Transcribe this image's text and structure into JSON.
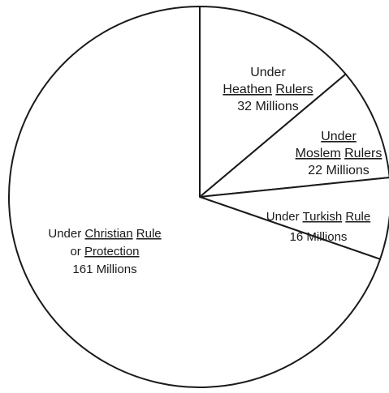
{
  "chart_data": {
    "type": "pie",
    "series": [
      {
        "slices": [
          {
            "lines": [
              {
                "runs": [
                  {
                    "t": "Under"
                  }
                ]
              },
              {
                "runs": [
                  {
                    "t": "Heathen",
                    "u": true
                  },
                  {
                    "t": " "
                  },
                  {
                    "t": "Rulers",
                    "u": true
                  }
                ]
              },
              {
                "runs": [
                  {
                    "t": "32 Millions"
                  }
                ]
              }
            ],
            "value": 32
          },
          {
            "lines": [
              {
                "runs": [
                  {
                    "t": "Under",
                    "u": true
                  }
                ]
              },
              {
                "runs": [
                  {
                    "t": "Moslem",
                    "u": true
                  },
                  {
                    "t": " "
                  },
                  {
                    "t": "Rulers",
                    "u": true
                  }
                ]
              },
              {
                "runs": [
                  {
                    "t": "22 Millions"
                  }
                ]
              }
            ],
            "value": 22
          },
          {
            "lines": [
              {
                "runs": [
                  {
                    "t": "Under "
                  },
                  {
                    "t": "Turkish",
                    "u": true
                  },
                  {
                    "t": " "
                  },
                  {
                    "t": "Rule",
                    "u": true
                  }
                ]
              },
              {
                "runs": [
                  {
                    "t": "16 Millions"
                  }
                ]
              }
            ],
            "value": 16
          },
          {
            "lines": [
              {
                "runs": [
                  {
                    "t": "Under "
                  },
                  {
                    "t": "Christian",
                    "u": true
                  },
                  {
                    "t": " "
                  },
                  {
                    "t": "Rule",
                    "u": true
                  }
                ]
              },
              {
                "runs": [
                  {
                    "t": "or "
                  },
                  {
                    "t": "Protection",
                    "u": true
                  }
                ]
              },
              {
                "runs": [
                  {
                    "t": "161 Millions"
                  }
                ]
              }
            ],
            "value": 161
          }
        ]
      }
    ],
    "colors": {
      "stroke": "#1a1a1a",
      "fill": "#ffffff"
    }
  }
}
